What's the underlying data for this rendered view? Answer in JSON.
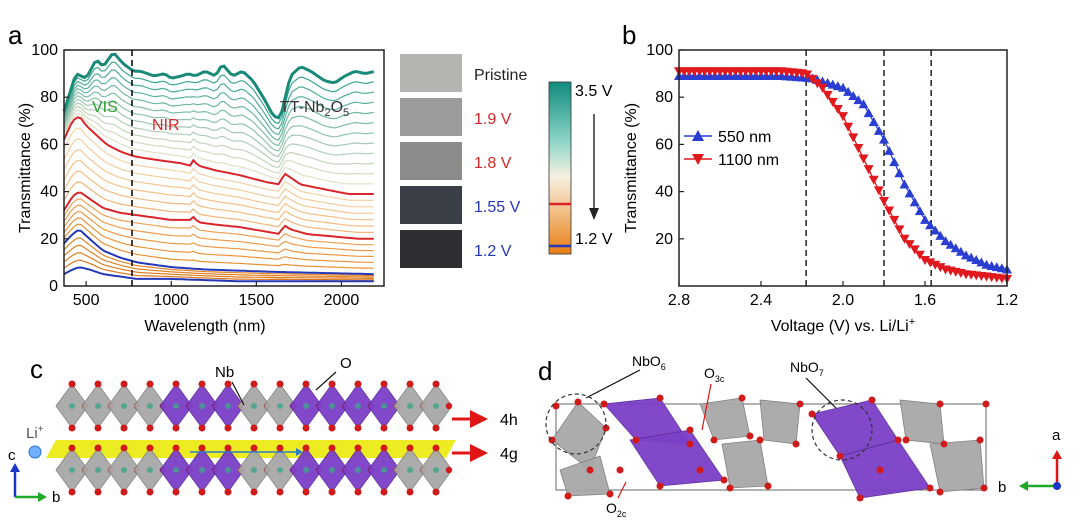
{
  "panels": {
    "a": "a",
    "b": "b",
    "c": "c",
    "d": "d"
  },
  "chart_data": [
    {
      "type": "line",
      "panel": "a",
      "xlabel": "Wavelength (nm)",
      "ylabel": "Transmittance (%)",
      "xlim": [
        370,
        2250
      ],
      "ylim": [
        0,
        100
      ],
      "xticks": [
        500,
        1000,
        1500,
        2000
      ],
      "yticks": [
        0,
        20,
        40,
        60,
        80,
        100
      ],
      "annotations": {
        "vis": "VIS",
        "nir": "NIR",
        "material": "TT-Nb",
        "material_sub1": "2",
        "material_mid": "O",
        "material_sub2": "5"
      },
      "divider_x": 780,
      "highlight_series": [
        {
          "label": "3.5 V",
          "color": "#1a8a78",
          "x": [
            370,
            440,
            500,
            560,
            600,
            660,
            720,
            780,
            820,
            900,
            960,
            1000,
            1060,
            1100,
            1140,
            1200,
            1260,
            1300,
            1360,
            1420,
            1480,
            1540,
            1600,
            1640,
            1700,
            1760,
            1820,
            1900,
            1960,
            2020,
            2080,
            2140,
            2200
          ],
          "y": [
            74,
            90,
            88,
            96,
            93,
            99,
            94,
            91,
            91,
            89,
            90,
            88,
            89,
            90,
            89,
            91,
            89,
            94,
            89,
            91,
            87,
            80,
            72,
            71,
            89,
            93,
            91,
            87,
            86,
            89,
            91,
            90,
            91
          ]
        },
        {
          "label": "1.9 V",
          "color": "#d9262a",
          "x": [
            370,
            420,
            460,
            500,
            560,
            620,
            700,
            780,
            860,
            960,
            1060,
            1110,
            1120,
            1160,
            1260,
            1400,
            1560,
            1640,
            1660,
            1700,
            1760,
            1900,
            2040,
            2200
          ],
          "y": [
            62,
            70,
            72,
            68,
            64,
            60,
            57,
            55,
            54,
            53,
            52,
            51,
            54,
            51,
            49,
            47,
            44,
            43,
            48,
            46,
            43,
            41,
            39,
            39
          ]
        },
        {
          "label": "1.8 V",
          "color": "#d9262a",
          "x": [
            370,
            420,
            460,
            520,
            600,
            700,
            800,
            900,
            1000,
            1110,
            1120,
            1160,
            1260,
            1400,
            1560,
            1640,
            1660,
            1700,
            1800,
            1950,
            2100,
            2200
          ],
          "y": [
            32,
            38,
            40,
            37,
            33,
            31,
            30,
            29,
            28,
            28,
            30,
            27,
            26,
            25,
            23,
            22,
            26,
            24,
            22,
            21,
            20,
            20
          ]
        },
        {
          "label": "1.55 V",
          "color": "#2438b8",
          "x": [
            370,
            420,
            460,
            520,
            600,
            700,
            800,
            1000,
            1200,
            1600,
            2200
          ],
          "y": [
            18,
            22,
            24,
            20,
            15,
            12,
            10,
            8,
            7,
            6,
            5
          ]
        },
        {
          "label": "1.2 V",
          "color": "#2438b8",
          "x": [
            370,
            420,
            460,
            520,
            600,
            700,
            800,
            1000,
            1400,
            2200
          ],
          "y": [
            5,
            7,
            8,
            7,
            5,
            4,
            3,
            3,
            2,
            2
          ]
        }
      ]
    },
    {
      "type": "scatter",
      "panel": "b",
      "xlabel": "Voltage (V) vs. Li/Li",
      "xlabel_sup": "+",
      "ylabel": "Transmittance (%)",
      "xlim": [
        2.8,
        1.2
      ],
      "ylim": [
        0,
        100
      ],
      "xticks": [
        "2.8",
        "2.4",
        "2.0",
        "1.6",
        "1.2"
      ],
      "yticks": [
        20,
        40,
        60,
        80,
        100
      ],
      "vlines": [
        2.18,
        1.8,
        1.57
      ],
      "series": [
        {
          "name": "550 nm",
          "color": "#2a3fd1",
          "marker": "triangle-up",
          "fit": [
            [
              2.8,
              89
            ],
            [
              2.3,
              89
            ],
            [
              2.15,
              88
            ],
            [
              2.0,
              84
            ],
            [
              1.9,
              77
            ],
            [
              1.8,
              62
            ],
            [
              1.7,
              43
            ],
            [
              1.6,
              28
            ],
            [
              1.5,
              19
            ],
            [
              1.4,
              13
            ],
            [
              1.3,
              9
            ],
            [
              1.2,
              7
            ]
          ]
        },
        {
          "name": "1100 nm",
          "color": "#e0191f",
          "marker": "triangle-down",
          "fit": [
            [
              2.8,
              91
            ],
            [
              2.3,
              91
            ],
            [
              2.18,
              90
            ],
            [
              2.1,
              84
            ],
            [
              2.0,
              72
            ],
            [
              1.9,
              54
            ],
            [
              1.8,
              36
            ],
            [
              1.7,
              20
            ],
            [
              1.6,
              11
            ],
            [
              1.5,
              7
            ],
            [
              1.4,
              5
            ],
            [
              1.3,
              4
            ],
            [
              1.2,
              3
            ]
          ]
        }
      ]
    }
  ],
  "colorbar": {
    "top_label": "3.5 V",
    "bottom_label": "1.2 V"
  },
  "swatches": [
    {
      "label": "Pristine",
      "label_color": "#222222",
      "fill": "#b4b4b0"
    },
    {
      "label": "1.9 V",
      "label_color": "#d9262a",
      "fill": "#9a9c9a"
    },
    {
      "label": "1.8 V",
      "label_color": "#d9262a",
      "fill": "#8a8c8a"
    },
    {
      "label": "1.55 V",
      "label_color": "#2438b8",
      "fill": "#3a3f48"
    },
    {
      "label": "1.2 V",
      "label_color": "#2438b8",
      "fill": "#2e2f33"
    }
  ],
  "panel_c": {
    "nb_label": "Nb",
    "o_label": "O",
    "li_label": "Li",
    "li_sup": "+",
    "site_4h": "4h",
    "site_4g": "4g",
    "axis_c": "c",
    "axis_b": "b"
  },
  "panel_d": {
    "nbo6": "NbO",
    "nbo6_sub": "6",
    "nbo7": "NbO",
    "nbo7_sub": "7",
    "o3c": "O",
    "o3c_sub": "3c",
    "o2c": "O",
    "o2c_sub": "2c",
    "axis_a": "a",
    "axis_b": "b"
  }
}
